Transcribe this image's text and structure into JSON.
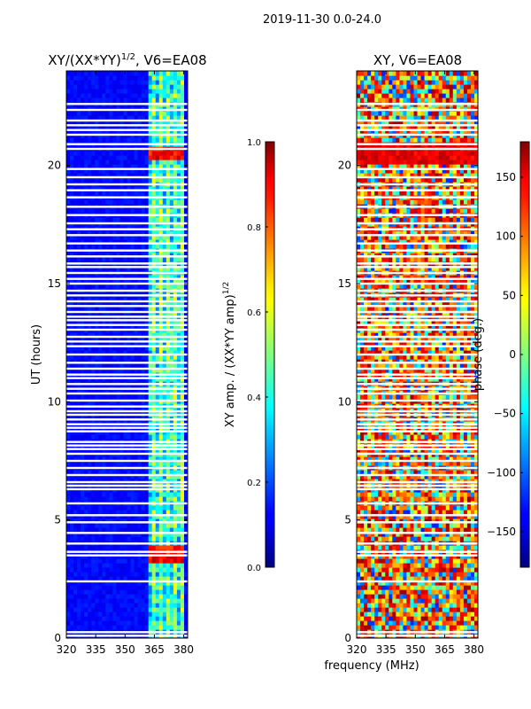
{
  "figure": {
    "suptitle": "2019-11-30 0.0-24.0",
    "xlabel": "frequency (MHz)"
  },
  "chart_data": [
    {
      "type": "heatmap",
      "title_text": "XY/(XX*YY)",
      "title_sup": "1/2",
      "title_rest": ", V6=EA08",
      "ylabel": "UT (hours)",
      "xlim": [
        320,
        382
      ],
      "ylim": [
        0,
        24
      ],
      "xticks": [
        320,
        335,
        350,
        365,
        380
      ],
      "yticks": [
        0,
        5,
        10,
        15,
        20
      ],
      "colormap": "jet",
      "colorbar": {
        "label_text": "XY amp. / (XX*YY amp)",
        "label_sup": "1/2",
        "range": [
          0.0,
          1.0
        ],
        "ticks": [
          "0.0",
          "0.2",
          "0.4",
          "0.6",
          "0.8",
          "1.0"
        ]
      }
    },
    {
      "type": "heatmap",
      "title_text": "XY, V6=EA08",
      "xlim": [
        320,
        382
      ],
      "ylim": [
        0,
        24
      ],
      "xticks": [
        320,
        335,
        350,
        365,
        380
      ],
      "yticks": [
        0,
        5,
        10,
        15,
        20
      ],
      "colormap": "jet",
      "colorbar": {
        "label_text": "phase (deg.)",
        "range": [
          -180,
          180
        ],
        "ticks": [
          "150",
          "100",
          "50",
          "0",
          "−50",
          "−100",
          "−150"
        ],
        "tick_values": [
          150,
          100,
          50,
          0,
          -50,
          -100,
          -150
        ]
      }
    }
  ],
  "flagged_rows_hours": [
    0.1,
    0.25,
    2.4,
    3.5,
    3.65,
    4.0,
    4.45,
    4.9,
    5.2,
    5.7,
    6.3,
    6.45,
    6.6,
    6.9,
    7.2,
    7.5,
    7.8,
    8.0,
    8.15,
    8.3,
    8.75,
    8.9,
    9.05,
    9.25,
    9.45,
    9.6,
    9.8,
    10.05,
    10.35,
    10.55,
    10.75,
    11.0,
    11.15,
    11.4,
    11.65,
    12.0,
    12.35,
    12.55,
    12.75,
    13.05,
    13.25,
    13.45,
    13.6,
    13.8,
    14.05,
    14.25,
    14.5,
    14.7,
    15.0,
    15.2,
    15.45,
    15.7,
    15.85,
    16.15,
    16.4,
    16.7,
    17.05,
    17.3,
    17.55,
    17.9,
    18.25,
    18.65,
    18.95,
    19.2,
    19.5,
    19.85,
    20.7,
    20.9,
    21.3,
    21.5,
    21.7,
    21.9,
    22.35,
    22.6
  ]
}
